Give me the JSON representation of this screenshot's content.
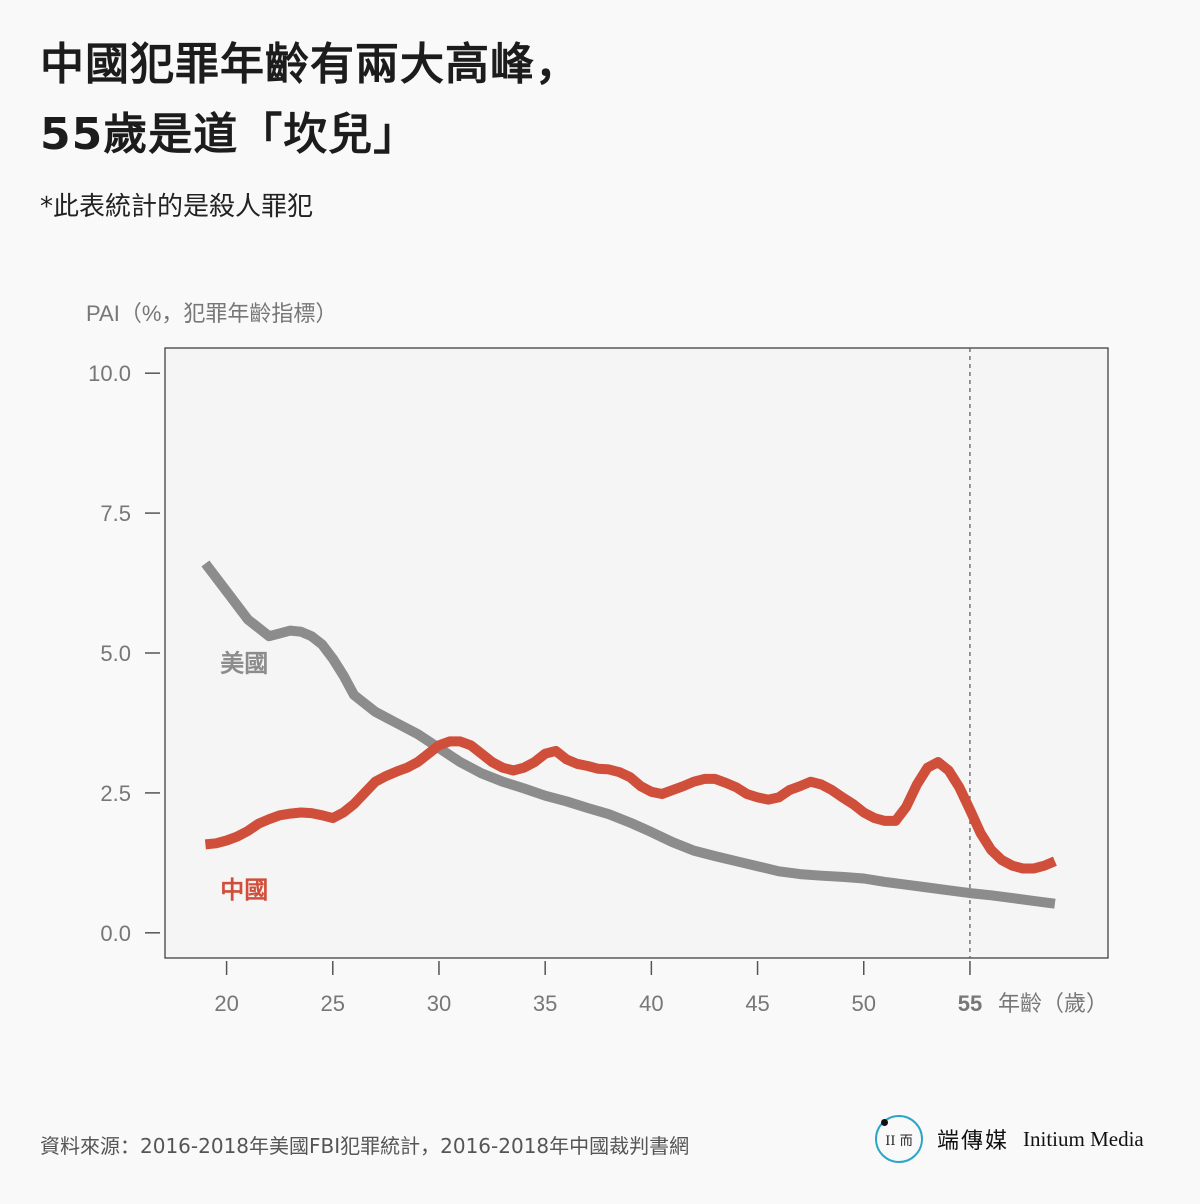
{
  "header": {
    "title_line1": "中國犯罪年齡有兩大高峰，",
    "title_line2": "55歲是道「坎兒」",
    "subtitle": "*此表統計的是殺人罪犯"
  },
  "footer": {
    "source": "資料來源：2016-2018年美國FBI犯罪統計，2016-2018年中國裁判書網",
    "brand_cn": "端傳媒",
    "brand_en": "Initium Media",
    "logo_text": "II 而"
  },
  "colors": {
    "china": "#d04f3a",
    "usa": "#8c8c8c",
    "axis": "#555555",
    "plot_bg": "#f5f5f5"
  },
  "chart_data": {
    "type": "line",
    "ylabel": "PAI（%，犯罪年齡指標）",
    "xlabel": "年齡（歲）",
    "xlim": [
      17.1,
      61.5
    ],
    "ylim": [
      -0.45,
      10.45
    ],
    "x_ticks": [
      20,
      25,
      30,
      35,
      40,
      45,
      50
    ],
    "x_tick_labels": [
      "20",
      "25",
      "30",
      "35",
      "40",
      "45",
      "50"
    ],
    "highlight_tick": {
      "x": 55,
      "label": "55"
    },
    "y_ticks": [
      0,
      2.5,
      5,
      7.5,
      10
    ],
    "y_tick_labels": [
      "0.0",
      "2.5",
      "5.0",
      "7.5",
      "10.0"
    ],
    "reference_line_x": 55,
    "grid": false,
    "series": [
      {
        "name": "美國",
        "color": "#8c8c8c",
        "x": [
          19,
          20,
          21,
          22,
          22.5,
          23,
          23.5,
          24,
          24.5,
          25,
          25.5,
          26,
          27,
          28,
          29,
          30,
          31,
          32,
          33,
          34,
          35,
          36,
          37,
          38,
          39,
          40,
          41,
          42,
          43,
          44,
          45,
          46,
          47,
          48,
          49,
          50,
          51,
          52,
          53,
          54,
          55,
          56,
          57,
          58,
          59
        ],
        "y": [
          6.6,
          6.1,
          5.6,
          5.3,
          5.35,
          5.4,
          5.38,
          5.3,
          5.15,
          4.9,
          4.6,
          4.25,
          3.95,
          3.75,
          3.55,
          3.3,
          3.05,
          2.85,
          2.7,
          2.58,
          2.45,
          2.35,
          2.23,
          2.12,
          1.97,
          1.8,
          1.62,
          1.47,
          1.37,
          1.28,
          1.19,
          1.1,
          1.05,
          1.02,
          1.0,
          0.97,
          0.91,
          0.86,
          0.81,
          0.76,
          0.71,
          0.67,
          0.62,
          0.57,
          0.52
        ]
      },
      {
        "name": "中國",
        "color": "#d04f3a",
        "x": [
          19,
          19.5,
          20,
          20.5,
          21,
          21.5,
          22,
          22.5,
          23,
          23.5,
          24,
          24.5,
          25,
          25.5,
          26,
          26.5,
          27,
          27.5,
          28,
          28.5,
          29,
          29.5,
          30,
          30.5,
          31,
          31.5,
          32,
          32.5,
          33,
          33.5,
          34,
          34.5,
          35,
          35.5,
          36,
          36.5,
          37,
          37.5,
          38,
          38.5,
          39,
          39.5,
          40,
          40.5,
          41,
          41.5,
          42,
          42.5,
          43,
          43.5,
          44,
          44.5,
          45,
          45.5,
          46,
          46.5,
          47,
          47.5,
          48,
          48.5,
          49,
          49.5,
          50,
          50.5,
          51,
          51.5,
          52,
          52.5,
          53,
          53.5,
          54,
          54.5,
          55,
          55.5,
          56,
          56.5,
          57,
          57.5,
          58,
          58.5,
          59
        ],
        "y": [
          1.58,
          1.6,
          1.65,
          1.72,
          1.82,
          1.95,
          2.03,
          2.1,
          2.13,
          2.15,
          2.14,
          2.1,
          2.05,
          2.15,
          2.3,
          2.5,
          2.7,
          2.8,
          2.88,
          2.95,
          3.05,
          3.2,
          3.35,
          3.42,
          3.42,
          3.35,
          3.2,
          3.05,
          2.95,
          2.9,
          2.95,
          3.05,
          3.2,
          3.25,
          3.1,
          3.02,
          2.98,
          2.93,
          2.92,
          2.87,
          2.78,
          2.62,
          2.52,
          2.48,
          2.55,
          2.62,
          2.7,
          2.75,
          2.75,
          2.68,
          2.6,
          2.48,
          2.42,
          2.38,
          2.42,
          2.55,
          2.62,
          2.7,
          2.65,
          2.55,
          2.42,
          2.3,
          2.15,
          2.05,
          2.0,
          2.0,
          2.25,
          2.65,
          2.95,
          3.05,
          2.9,
          2.6,
          2.2,
          1.78,
          1.48,
          1.3,
          1.2,
          1.15,
          1.15,
          1.2,
          1.28
        ]
      }
    ],
    "annotations": [
      {
        "text": "美國",
        "x": 19.7,
        "y": 4.85,
        "color": "#8c8c8c"
      },
      {
        "text": "中國",
        "x": 19.7,
        "y": 0.8,
        "color": "#d04f3a"
      }
    ]
  }
}
